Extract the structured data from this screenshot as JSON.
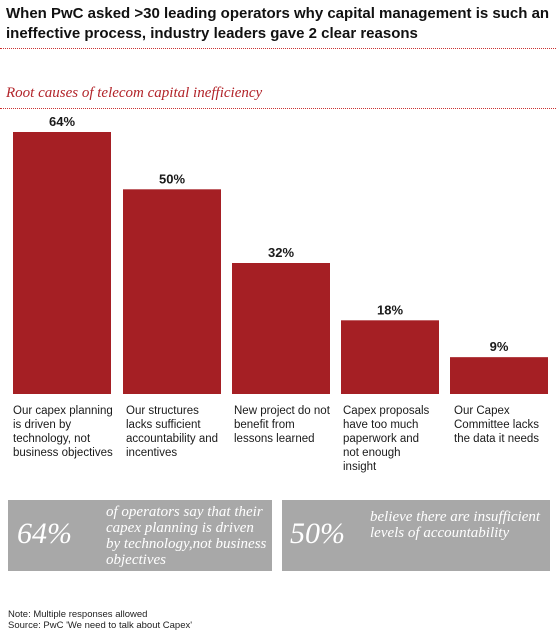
{
  "headline": "When PwC asked >30 leading operators why capital management is such an ineffective process, industry leaders gave 2 clear reasons",
  "subtitle": "Root causes of telecom capital inefficiency",
  "colors": {
    "bar": "#a51f24",
    "accent_text": "#b2242a",
    "callout_bg": "#a8a8a8"
  },
  "chart_data": {
    "type": "bar",
    "title": "Root causes of telecom capital inefficiency",
    "categories": [
      "Our capex planning is driven by technology, not business objectives",
      "Our structures lacks sufficient accountability and incentives",
      "New project do not benefit from lessons learned",
      "Capex proposals have too much paperwork and not enough insight",
      "Our Capex Committee lacks the data it needs"
    ],
    "values": [
      64,
      50,
      32,
      18,
      9
    ],
    "value_labels": [
      "64%",
      "50%",
      "32%",
      "18%",
      "9%"
    ],
    "unit": "%",
    "ylim": [
      0,
      64
    ],
    "grid": false,
    "legend": "none"
  },
  "categories": [
    {
      "label": "Our capex planning is driven by technology, not business objectives"
    },
    {
      "label": "Our structures lacks sufficient accountability and incentives"
    },
    {
      "label": "New project do not benefit from lessons learned"
    },
    {
      "label": "Capex proposals have too much paperwork and not enough insight"
    },
    {
      "label": "Our Capex Committee lacks the data it needs"
    }
  ],
  "callouts": [
    {
      "value": "64%",
      "text": "of operators say that their capex planning is driven by technology,not business objectives"
    },
    {
      "value": "50%",
      "text": "believe there are insufficient levels of accountability"
    }
  ],
  "notes": {
    "note": "Note: Multiple responses allowed",
    "source": "Source: PwC 'We need to talk about Capex'"
  }
}
